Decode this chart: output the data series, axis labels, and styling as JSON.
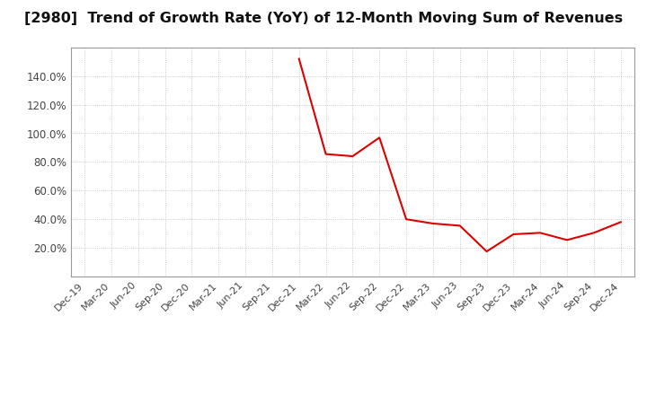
{
  "title": "[2980]  Trend of Growth Rate (YoY) of 12-Month Moving Sum of Revenues",
  "x_labels": [
    "Dec-19",
    "Mar-20",
    "Jun-20",
    "Sep-20",
    "Dec-20",
    "Mar-21",
    "Jun-21",
    "Sep-21",
    "Dec-21",
    "Mar-22",
    "Jun-22",
    "Sep-22",
    "Dec-22",
    "Mar-23",
    "Jun-23",
    "Sep-23",
    "Dec-23",
    "Mar-24",
    "Jun-24",
    "Sep-24",
    "Dec-24"
  ],
  "x_values": [
    0,
    1,
    2,
    3,
    4,
    5,
    6,
    7,
    8,
    9,
    10,
    11,
    12,
    13,
    14,
    15,
    16,
    17,
    18,
    19,
    20
  ],
  "y_values": [
    null,
    null,
    null,
    null,
    null,
    null,
    null,
    null,
    1.52,
    0.855,
    0.84,
    0.97,
    0.4,
    0.37,
    0.355,
    0.175,
    0.295,
    0.305,
    0.255,
    0.305,
    0.38
  ],
  "line_color": "#dd0000",
  "background_color": "#ffffff",
  "ylim": [
    0.0,
    1.6
  ],
  "yticks": [
    0.2,
    0.4,
    0.6,
    0.8,
    1.0,
    1.2,
    1.4
  ],
  "grid_color": "#bbbbbb",
  "title_fontsize": 11.5,
  "tick_fontsize": 8,
  "ytick_fontsize": 8.5
}
